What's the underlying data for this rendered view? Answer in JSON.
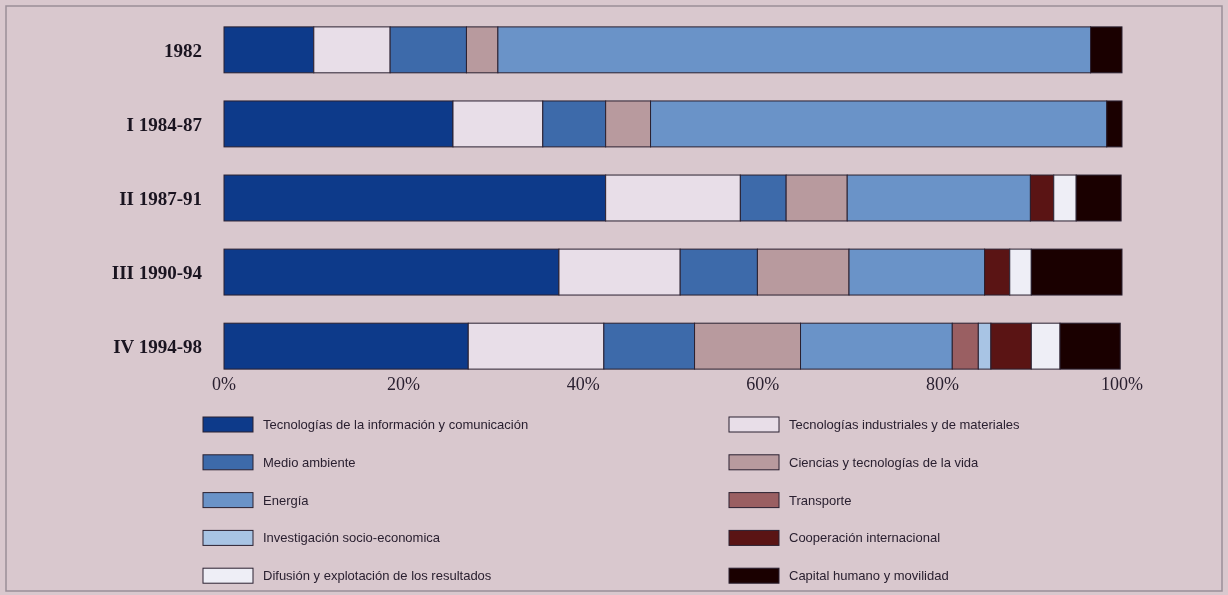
{
  "chart_data": {
    "type": "bar",
    "orientation": "horizontal",
    "stacked": true,
    "categories": [
      "1982",
      "I 1984-87",
      "II 1987-91",
      "III 1990-94",
      "IV 1994-98"
    ],
    "series": [
      {
        "name": "Tecnologías de la información y comunicación",
        "color": "#0d3a8a",
        "values": [
          10,
          25.5,
          42.5,
          37.3,
          27.2
        ]
      },
      {
        "name": "Tecnologías industriales y de materiales",
        "color": "#e8dee8",
        "values": [
          8.5,
          10,
          15,
          13.5,
          15.1
        ]
      },
      {
        "name": "Medio ambiente",
        "color": "#3d6aaa",
        "values": [
          8.5,
          7,
          5.1,
          8.6,
          10.1
        ]
      },
      {
        "name": "Ciencias y tecnologías de la vida",
        "color": "#b89a9e",
        "values": [
          3.5,
          5,
          6.8,
          10.2,
          11.8
        ]
      },
      {
        "name": "Energía",
        "color": "#6a93c8",
        "values": [
          66,
          50.8,
          20.4,
          15.1,
          16.9
        ]
      },
      {
        "name": "Transporte",
        "color": "#9a5f62",
        "values": [
          null,
          null,
          null,
          null,
          2.9
        ]
      },
      {
        "name": "Investigación socio-economica",
        "color": "#a8c4e4",
        "values": [
          null,
          null,
          null,
          null,
          1.4
        ]
      },
      {
        "name": "Cooperación internacional",
        "color": "#5a1414",
        "values": [
          null,
          null,
          2.6,
          2.8,
          4.5
        ]
      },
      {
        "name": "Difusión y explotación de los resultados",
        "color": "#eeeef6",
        "values": [
          null,
          null,
          2.5,
          2.4,
          3.2
        ]
      },
      {
        "name": "Capital humano y movilidad",
        "color": "#1a0000",
        "values": [
          3.5,
          1.7,
          5,
          10.1,
          6.7
        ]
      }
    ],
    "xlim": [
      0,
      100
    ],
    "xticks": [
      {
        "value": 0,
        "label": "0%"
      },
      {
        "value": 20,
        "label": "20%"
      },
      {
        "value": 40,
        "label": "40%"
      },
      {
        "value": 60,
        "label": "60%"
      },
      {
        "value": 80,
        "label": "80%"
      },
      {
        "value": 100,
        "label": "100%"
      }
    ],
    "legend": "bottom",
    "grid": false
  }
}
